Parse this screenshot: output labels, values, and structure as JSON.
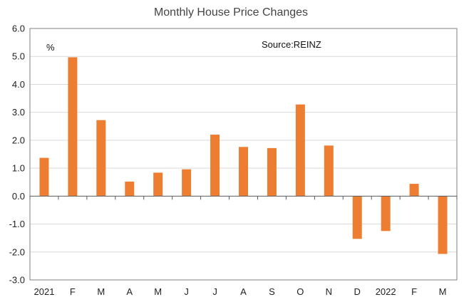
{
  "chart_data": {
    "type": "bar",
    "title": "Monthly House Price Changes",
    "unit_label": "%",
    "source_label": "Source:REINZ",
    "categories": [
      "2021",
      "F",
      "M",
      "A",
      "M",
      "J",
      "J",
      "A",
      "S",
      "O",
      "N",
      "D",
      "2022",
      "F",
      "M"
    ],
    "values": [
      1.37,
      4.97,
      2.72,
      0.52,
      0.84,
      0.96,
      2.2,
      1.76,
      1.72,
      3.28,
      1.81,
      -1.53,
      -1.25,
      0.44,
      -2.07
    ],
    "ylim": [
      -3.0,
      6.0
    ],
    "yticks": [
      "-3.0",
      "-2.0",
      "-1.0",
      "0.0",
      "1.0",
      "2.0",
      "3.0",
      "4.0",
      "5.0",
      "6.0"
    ],
    "bar_color": "#ED7D31",
    "grid": true,
    "legend": "none"
  }
}
